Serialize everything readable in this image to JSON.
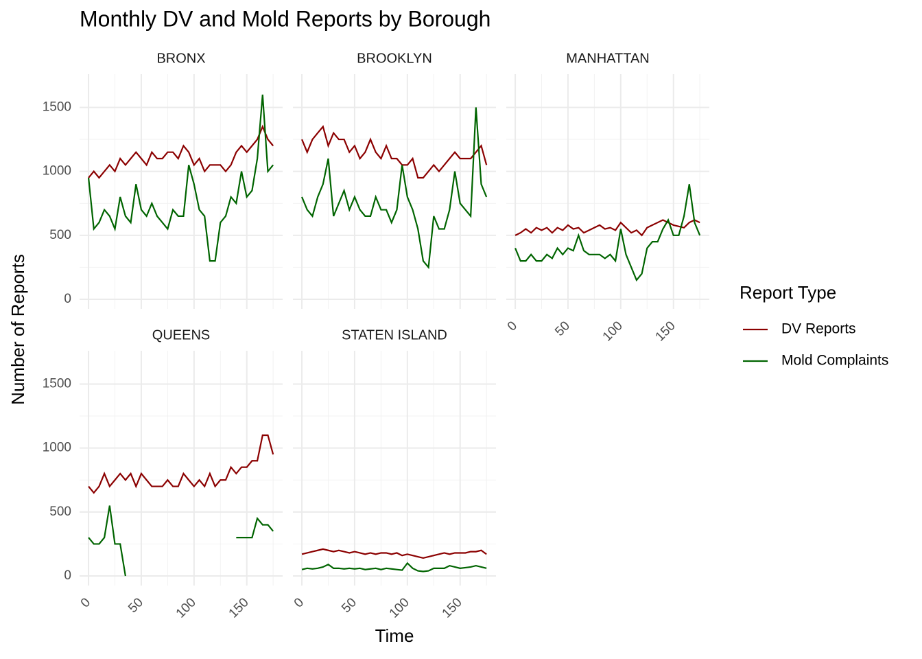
{
  "chart_data": {
    "type": "line",
    "title": "Monthly DV and Mold Reports by Borough",
    "xlabel": "Time",
    "ylabel": "Number of Reports",
    "legend_title": "Report Type",
    "series": [
      {
        "name": "DV Reports",
        "color": "#8b0000"
      },
      {
        "name": "Mold Complaints",
        "color": "#006400"
      }
    ],
    "x": [
      0,
      5,
      10,
      15,
      20,
      25,
      30,
      35,
      40,
      45,
      50,
      55,
      60,
      65,
      70,
      75,
      80,
      85,
      90,
      95,
      100,
      105,
      110,
      115,
      120,
      125,
      130,
      135,
      140,
      145,
      150,
      155,
      160,
      165,
      170,
      175
    ],
    "xlim": [
      -8.5,
      184
    ],
    "ylim": [
      -75,
      1760
    ],
    "xticks": [
      0,
      50,
      100,
      150
    ],
    "yticks": [
      0,
      500,
      1000,
      1500
    ],
    "xminor": [
      25,
      75,
      125,
      175
    ],
    "yminor": [
      250,
      750,
      1250
    ],
    "grid": true,
    "panels": [
      {
        "title": "BRONX",
        "values": [
          [
            950,
            1000,
            950,
            1000,
            1050,
            1000,
            1100,
            1050,
            1100,
            1150,
            1100,
            1050,
            1150,
            1100,
            1100,
            1150,
            1150,
            1100,
            1200,
            1150,
            1050,
            1100,
            1000,
            1050,
            1050,
            1050,
            1000,
            1050,
            1150,
            1200,
            1150,
            1200,
            1250,
            1350,
            1250,
            1200
          ],
          [
            950,
            550,
            600,
            700,
            650,
            550,
            800,
            650,
            600,
            900,
            700,
            650,
            750,
            650,
            600,
            550,
            700,
            650,
            650,
            1050,
            900,
            700,
            650,
            300,
            300,
            600,
            650,
            800,
            750,
            1000,
            800,
            850,
            1100,
            1600,
            1000,
            1050
          ]
        ]
      },
      {
        "title": "BROOKLYN",
        "values": [
          [
            1250,
            1150,
            1250,
            1300,
            1350,
            1200,
            1300,
            1250,
            1250,
            1150,
            1200,
            1100,
            1150,
            1250,
            1150,
            1100,
            1200,
            1100,
            1100,
            1050,
            1050,
            1100,
            950,
            950,
            1000,
            1050,
            1000,
            1050,
            1100,
            1150,
            1100,
            1100,
            1100,
            1150,
            1200,
            1050
          ],
          [
            800,
            700,
            650,
            800,
            900,
            1100,
            650,
            750,
            850,
            700,
            800,
            700,
            650,
            650,
            800,
            700,
            700,
            600,
            700,
            1050,
            800,
            700,
            550,
            300,
            250,
            650,
            550,
            550,
            700,
            1000,
            750,
            700,
            650,
            1500,
            900,
            800
          ]
        ]
      },
      {
        "title": "MANHATTAN",
        "values": [
          [
            500,
            520,
            550,
            520,
            560,
            540,
            560,
            520,
            560,
            540,
            580,
            550,
            560,
            520,
            540,
            560,
            580,
            550,
            560,
            540,
            600,
            560,
            520,
            540,
            500,
            560,
            580,
            600,
            620,
            600,
            580,
            570,
            560,
            600,
            620,
            600
          ],
          [
            400,
            300,
            300,
            350,
            300,
            300,
            350,
            320,
            400,
            350,
            400,
            380,
            500,
            380,
            350,
            350,
            350,
            320,
            350,
            300,
            550,
            350,
            250,
            150,
            200,
            400,
            450,
            450,
            550,
            620,
            500,
            500,
            650,
            900,
            600,
            500
          ]
        ]
      },
      {
        "title": "QUEENS",
        "values": [
          [
            700,
            650,
            700,
            800,
            700,
            750,
            800,
            750,
            800,
            700,
            800,
            750,
            700,
            700,
            700,
            750,
            700,
            700,
            800,
            750,
            700,
            750,
            700,
            800,
            700,
            750,
            750,
            850,
            800,
            850,
            850,
            900,
            900,
            1100,
            1100,
            950
          ],
          [
            300,
            250,
            250,
            300,
            550,
            250,
            250,
            0,
            null,
            null,
            null,
            null,
            null,
            null,
            null,
            null,
            null,
            null,
            null,
            null,
            null,
            null,
            null,
            null,
            null,
            null,
            null,
            null,
            300,
            300,
            300,
            300,
            450,
            400,
            400,
            350
          ]
        ]
      },
      {
        "title": "STATEN ISLAND",
        "values": [
          [
            170,
            180,
            190,
            200,
            210,
            200,
            190,
            200,
            190,
            180,
            190,
            180,
            170,
            180,
            170,
            180,
            180,
            170,
            180,
            160,
            170,
            160,
            150,
            140,
            150,
            160,
            170,
            180,
            170,
            180,
            180,
            180,
            190,
            190,
            200,
            170
          ],
          [
            50,
            60,
            55,
            60,
            70,
            90,
            60,
            60,
            55,
            60,
            55,
            60,
            50,
            55,
            60,
            50,
            60,
            55,
            50,
            45,
            100,
            60,
            40,
            35,
            40,
            60,
            60,
            60,
            80,
            70,
            60,
            65,
            70,
            80,
            70,
            60
          ]
        ]
      }
    ]
  }
}
